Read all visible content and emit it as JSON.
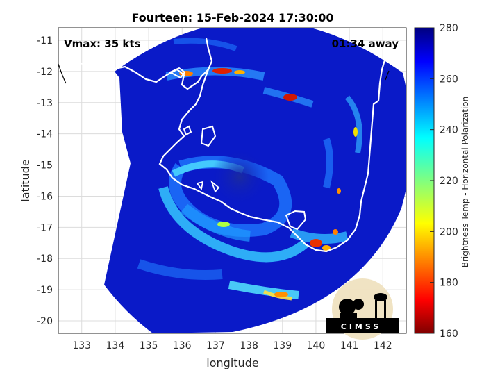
{
  "chart_data": {
    "type": "heatmap",
    "title": "Fourteen: 15-Feb-2024 17:30:00",
    "xlabel": "longitude",
    "ylabel": "latitude",
    "xlim": [
      132.3,
      142.7
    ],
    "ylim": [
      -20.4,
      -10.6
    ],
    "xticks": [
      "133",
      "134",
      "135",
      "136",
      "137",
      "138",
      "139",
      "140",
      "141",
      "142"
    ],
    "yticks": [
      "-11",
      "-12",
      "-13",
      "-14",
      "-15",
      "-16",
      "-17",
      "-18",
      "-19",
      "-20"
    ],
    "grid": true,
    "annotations": {
      "left": "Vmax: 35 kts",
      "right": "01:34 away"
    },
    "colorbar": {
      "label": "Brightness Temp - Horizontal Polarization",
      "range": [
        160,
        280
      ],
      "ticks": [
        "280",
        "260",
        "240",
        "220",
        "200",
        "180",
        "160"
      ],
      "colormap": "jet",
      "placement": "right"
    },
    "storm_center": {
      "lon": 138.1,
      "lat": -15.5
    },
    "logo": {
      "text": "CIMSS"
    }
  }
}
